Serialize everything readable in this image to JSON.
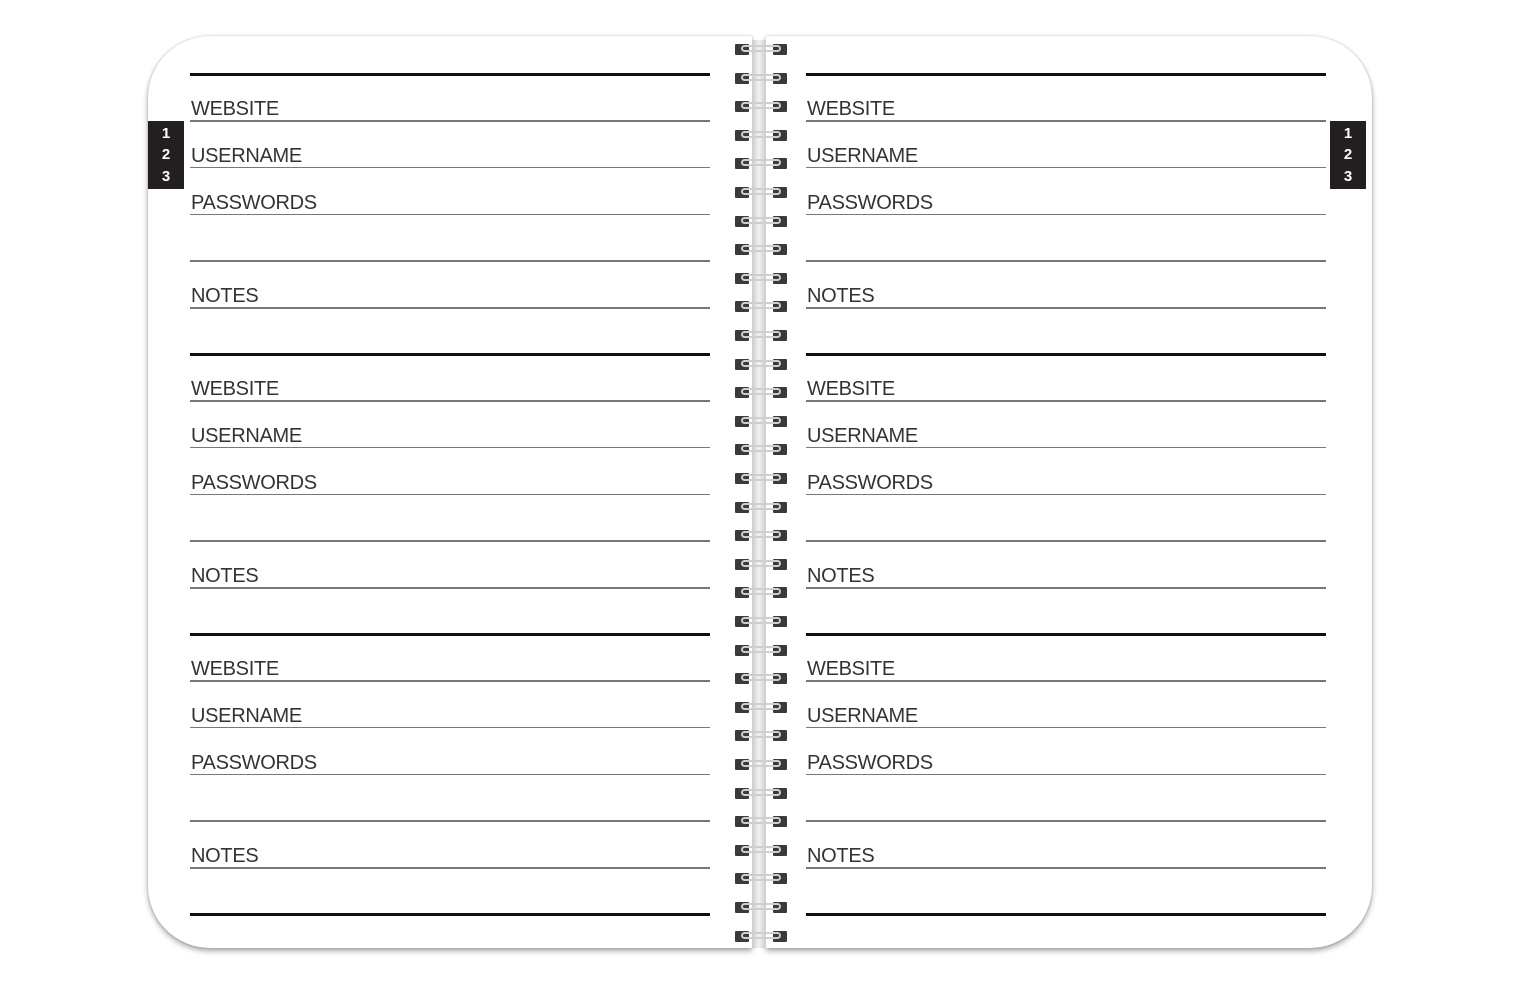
{
  "tab_numbers": [
    "1",
    "2",
    "3"
  ],
  "field_labels": [
    "WEBSITE",
    "USERNAME",
    "PASSWORDS",
    "",
    "NOTES"
  ],
  "sections_per_page": 3,
  "colors": {
    "ink": "#111111",
    "rule": "#777777",
    "tab": "#231f20"
  }
}
